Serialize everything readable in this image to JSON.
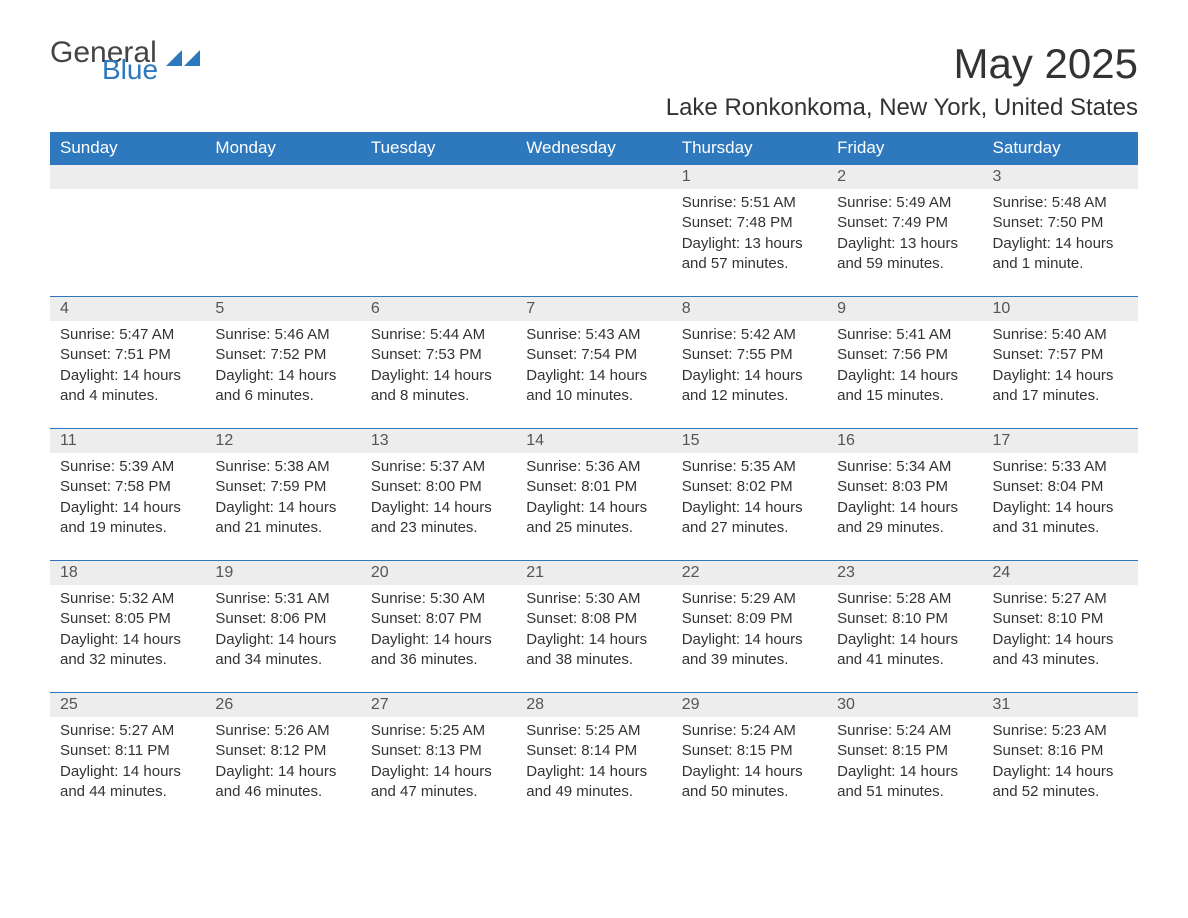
{
  "logo": {
    "word1": "General",
    "word2": "Blue"
  },
  "title": "May 2025",
  "location": "Lake Ronkonkoma, New York, United States",
  "colors": {
    "header_bg": "#2e78bd",
    "header_text": "#ffffff",
    "daynum_bg": "#ededed",
    "daynum_border": "#2e78bd",
    "text": "#333333",
    "logo_blue": "#2e78bd"
  },
  "weekdays": [
    "Sunday",
    "Monday",
    "Tuesday",
    "Wednesday",
    "Thursday",
    "Friday",
    "Saturday"
  ],
  "first_weekday_index": 4,
  "days": [
    {
      "n": 1,
      "sunrise": "5:51 AM",
      "sunset": "7:48 PM",
      "daylight": "13 hours and 57 minutes."
    },
    {
      "n": 2,
      "sunrise": "5:49 AM",
      "sunset": "7:49 PM",
      "daylight": "13 hours and 59 minutes."
    },
    {
      "n": 3,
      "sunrise": "5:48 AM",
      "sunset": "7:50 PM",
      "daylight": "14 hours and 1 minute."
    },
    {
      "n": 4,
      "sunrise": "5:47 AM",
      "sunset": "7:51 PM",
      "daylight": "14 hours and 4 minutes."
    },
    {
      "n": 5,
      "sunrise": "5:46 AM",
      "sunset": "7:52 PM",
      "daylight": "14 hours and 6 minutes."
    },
    {
      "n": 6,
      "sunrise": "5:44 AM",
      "sunset": "7:53 PM",
      "daylight": "14 hours and 8 minutes."
    },
    {
      "n": 7,
      "sunrise": "5:43 AM",
      "sunset": "7:54 PM",
      "daylight": "14 hours and 10 minutes."
    },
    {
      "n": 8,
      "sunrise": "5:42 AM",
      "sunset": "7:55 PM",
      "daylight": "14 hours and 12 minutes."
    },
    {
      "n": 9,
      "sunrise": "5:41 AM",
      "sunset": "7:56 PM",
      "daylight": "14 hours and 15 minutes."
    },
    {
      "n": 10,
      "sunrise": "5:40 AM",
      "sunset": "7:57 PM",
      "daylight": "14 hours and 17 minutes."
    },
    {
      "n": 11,
      "sunrise": "5:39 AM",
      "sunset": "7:58 PM",
      "daylight": "14 hours and 19 minutes."
    },
    {
      "n": 12,
      "sunrise": "5:38 AM",
      "sunset": "7:59 PM",
      "daylight": "14 hours and 21 minutes."
    },
    {
      "n": 13,
      "sunrise": "5:37 AM",
      "sunset": "8:00 PM",
      "daylight": "14 hours and 23 minutes."
    },
    {
      "n": 14,
      "sunrise": "5:36 AM",
      "sunset": "8:01 PM",
      "daylight": "14 hours and 25 minutes."
    },
    {
      "n": 15,
      "sunrise": "5:35 AM",
      "sunset": "8:02 PM",
      "daylight": "14 hours and 27 minutes."
    },
    {
      "n": 16,
      "sunrise": "5:34 AM",
      "sunset": "8:03 PM",
      "daylight": "14 hours and 29 minutes."
    },
    {
      "n": 17,
      "sunrise": "5:33 AM",
      "sunset": "8:04 PM",
      "daylight": "14 hours and 31 minutes."
    },
    {
      "n": 18,
      "sunrise": "5:32 AM",
      "sunset": "8:05 PM",
      "daylight": "14 hours and 32 minutes."
    },
    {
      "n": 19,
      "sunrise": "5:31 AM",
      "sunset": "8:06 PM",
      "daylight": "14 hours and 34 minutes."
    },
    {
      "n": 20,
      "sunrise": "5:30 AM",
      "sunset": "8:07 PM",
      "daylight": "14 hours and 36 minutes."
    },
    {
      "n": 21,
      "sunrise": "5:30 AM",
      "sunset": "8:08 PM",
      "daylight": "14 hours and 38 minutes."
    },
    {
      "n": 22,
      "sunrise": "5:29 AM",
      "sunset": "8:09 PM",
      "daylight": "14 hours and 39 minutes."
    },
    {
      "n": 23,
      "sunrise": "5:28 AM",
      "sunset": "8:10 PM",
      "daylight": "14 hours and 41 minutes."
    },
    {
      "n": 24,
      "sunrise": "5:27 AM",
      "sunset": "8:10 PM",
      "daylight": "14 hours and 43 minutes."
    },
    {
      "n": 25,
      "sunrise": "5:27 AM",
      "sunset": "8:11 PM",
      "daylight": "14 hours and 44 minutes."
    },
    {
      "n": 26,
      "sunrise": "5:26 AM",
      "sunset": "8:12 PM",
      "daylight": "14 hours and 46 minutes."
    },
    {
      "n": 27,
      "sunrise": "5:25 AM",
      "sunset": "8:13 PM",
      "daylight": "14 hours and 47 minutes."
    },
    {
      "n": 28,
      "sunrise": "5:25 AM",
      "sunset": "8:14 PM",
      "daylight": "14 hours and 49 minutes."
    },
    {
      "n": 29,
      "sunrise": "5:24 AM",
      "sunset": "8:15 PM",
      "daylight": "14 hours and 50 minutes."
    },
    {
      "n": 30,
      "sunrise": "5:24 AM",
      "sunset": "8:15 PM",
      "daylight": "14 hours and 51 minutes."
    },
    {
      "n": 31,
      "sunrise": "5:23 AM",
      "sunset": "8:16 PM",
      "daylight": "14 hours and 52 minutes."
    }
  ],
  "labels": {
    "sunrise": "Sunrise:",
    "sunset": "Sunset:",
    "daylight": "Daylight:"
  }
}
